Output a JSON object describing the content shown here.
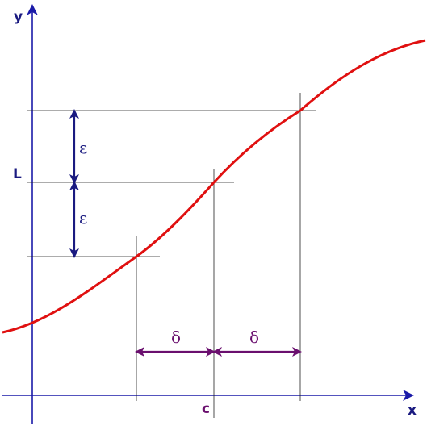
{
  "labels": {
    "x_axis": "x",
    "y_axis": "y",
    "L": "L",
    "c": "c",
    "epsilon_upper": "ε",
    "epsilon_lower": "ε",
    "delta_left": "δ",
    "delta_right": "δ"
  },
  "colors": {
    "axis": "#1a1aa8",
    "curve": "#e01010",
    "guide": "#222222",
    "epsilon_arrow": "#1a1a80",
    "delta_arrow": "#6a0f6e"
  }
}
